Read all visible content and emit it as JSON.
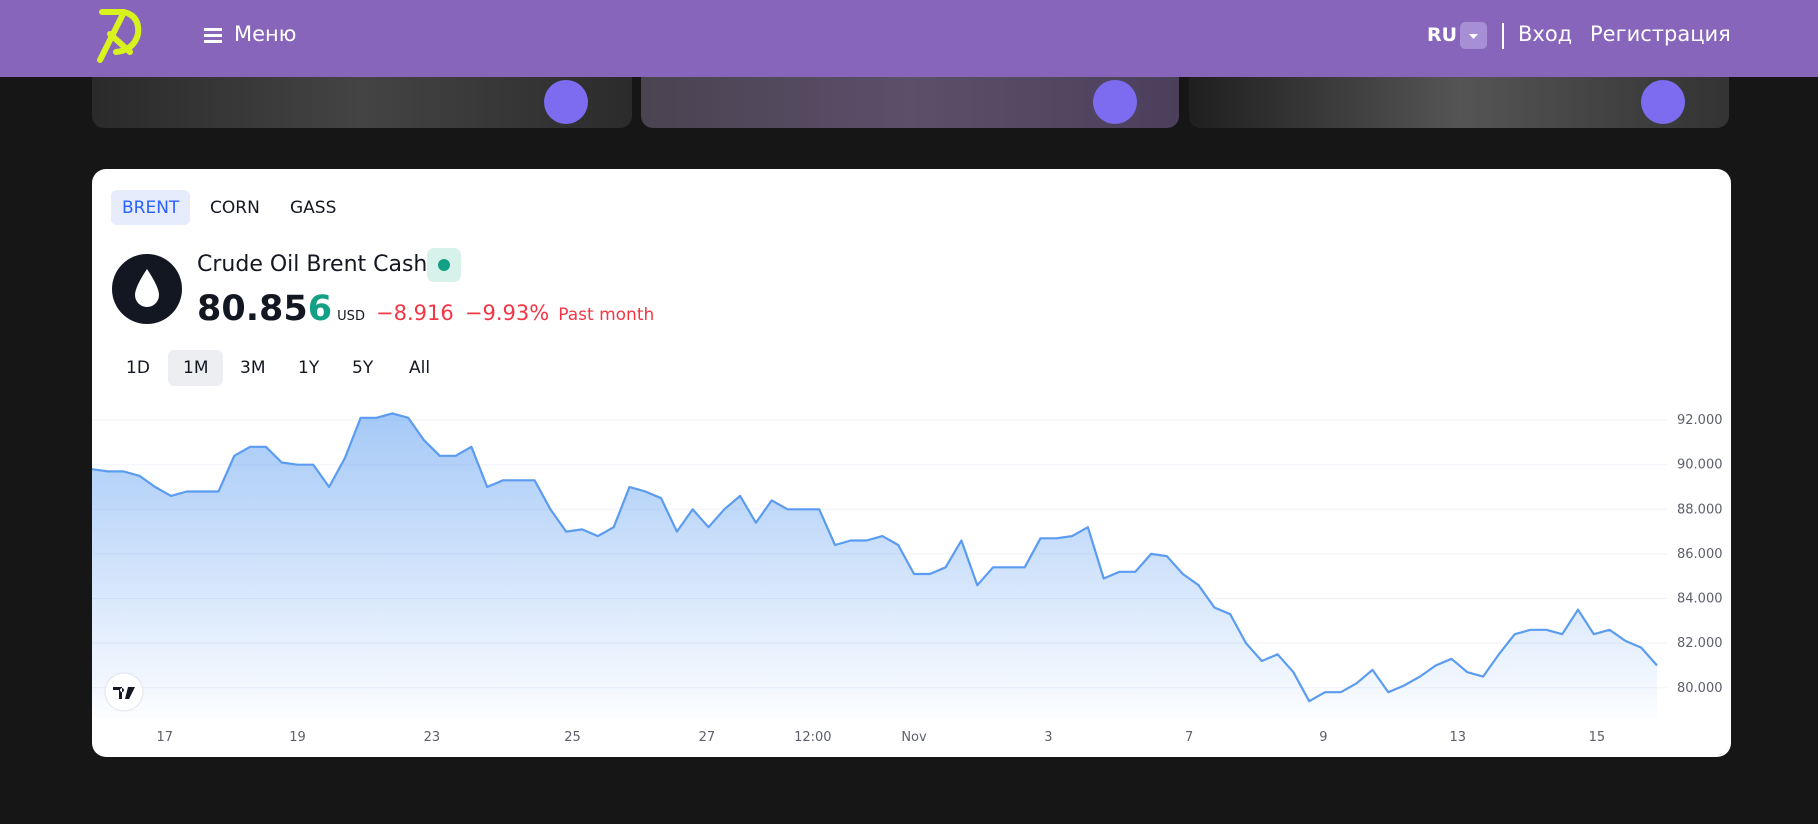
{
  "header": {
    "menu": "Меню",
    "language": "RU",
    "login": "Вход",
    "register": "Регистрация"
  },
  "tabs": [
    "BRENT",
    "CORN",
    "GASS"
  ],
  "quote": {
    "name": "Crude Oil Brent Cash",
    "price_main": "80.85",
    "price_last": "6",
    "currency": "USD",
    "change": "−8.916",
    "change_percent": "−9.93%",
    "period": "Past month"
  },
  "ranges": [
    "1D",
    "1M",
    "3M",
    "1Y",
    "5Y",
    "All"
  ],
  "chart_data": {
    "type": "area",
    "color": "#5b9cf0",
    "values": [
      89.8,
      89.7,
      89.7,
      89.5,
      89.0,
      88.6,
      88.8,
      88.8,
      88.8,
      90.4,
      90.8,
      90.8,
      90.1,
      90.0,
      90.0,
      89.0,
      90.3,
      92.1,
      92.1,
      92.3,
      92.1,
      91.1,
      90.4,
      90.4,
      90.8,
      89.0,
      89.3,
      89.3,
      89.3,
      88.0,
      87.0,
      87.1,
      86.8,
      87.2,
      89.0,
      88.8,
      88.5,
      87.0,
      88.0,
      87.2,
      88.0,
      88.6,
      87.4,
      88.4,
      88.0,
      88.0,
      88.0,
      86.4,
      86.6,
      86.6,
      86.8,
      86.4,
      85.1,
      85.1,
      85.4,
      86.6,
      84.6,
      85.4,
      85.4,
      85.4,
      86.7,
      86.7,
      86.8,
      87.2,
      84.9,
      85.2,
      85.2,
      86.0,
      85.9,
      85.1,
      84.6,
      83.6,
      83.3,
      82.0,
      81.2,
      81.5,
      80.7,
      79.4,
      79.8,
      79.8,
      80.2,
      80.8,
      79.8,
      80.1,
      80.5,
      81.0,
      81.3,
      80.7,
      80.5,
      81.5,
      82.4,
      82.6,
      82.6,
      82.4,
      83.5,
      82.4,
      82.6,
      82.1,
      81.8,
      81.0
    ],
    "xlim": [
      0,
      99
    ],
    "xticks": [
      {
        "value": 4.6,
        "label": "17"
      },
      {
        "value": 13.0,
        "label": "19"
      },
      {
        "value": 21.5,
        "label": "23"
      },
      {
        "value": 30.4,
        "label": "25"
      },
      {
        "value": 38.9,
        "label": "27"
      },
      {
        "value": 45.6,
        "label": "12:00"
      },
      {
        "value": 52.0,
        "label": "Nov"
      },
      {
        "value": 60.5,
        "label": "3"
      },
      {
        "value": 69.4,
        "label": "7"
      },
      {
        "value": 77.9,
        "label": "9"
      },
      {
        "value": 86.4,
        "label": "13"
      },
      {
        "value": 95.2,
        "label": "15"
      }
    ],
    "ylim": [
      78.6,
      92.9
    ],
    "yticks": [
      {
        "value": 80,
        "label": "80.000"
      },
      {
        "value": 82,
        "label": "82.000"
      },
      {
        "value": 84,
        "label": "84.000"
      },
      {
        "value": 86,
        "label": "86.000"
      },
      {
        "value": 88,
        "label": "88.000"
      },
      {
        "value": 90,
        "label": "90.000"
      },
      {
        "value": 92,
        "label": "92.000"
      }
    ],
    "grid": true
  }
}
